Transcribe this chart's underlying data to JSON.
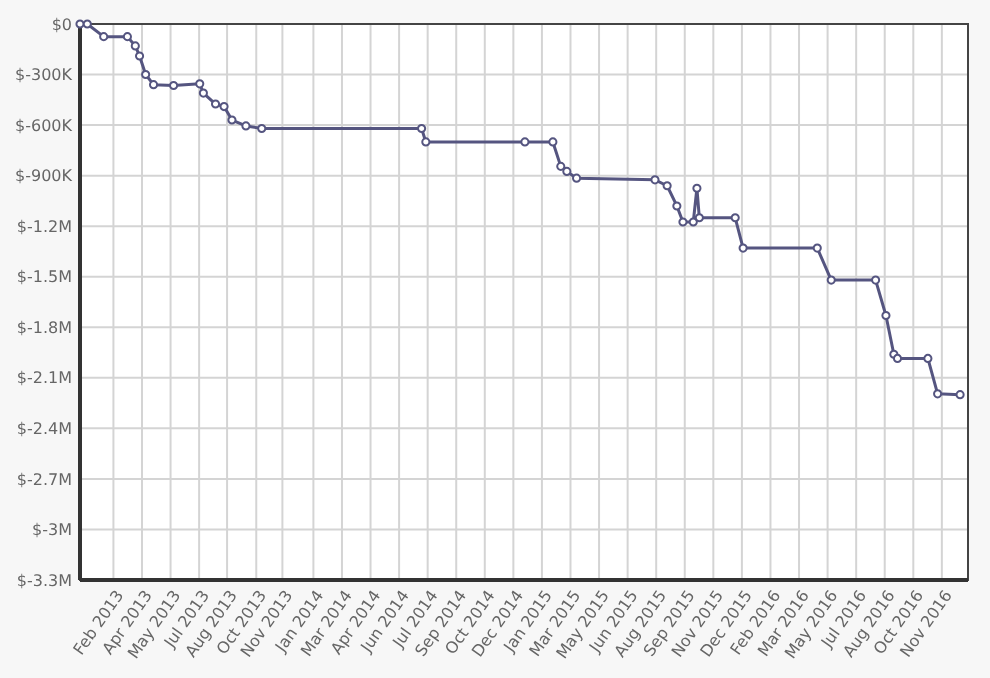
{
  "chart_data": {
    "type": "line",
    "x": [
      "2013-01-01",
      "2013-01-13",
      "2013-02-09",
      "2013-03-20",
      "2013-04-02",
      "2013-04-09",
      "2013-04-19",
      "2013-05-02",
      "2013-06-04",
      "2013-07-17",
      "2013-07-23",
      "2013-08-12",
      "2013-08-26",
      "2013-09-08",
      "2013-10-01",
      "2013-10-27",
      "2014-07-17",
      "2014-07-24",
      "2015-01-03",
      "2015-02-18",
      "2015-03-03",
      "2015-03-13",
      "2015-03-29",
      "2015-08-05",
      "2015-08-25",
      "2015-09-10",
      "2015-09-20",
      "2015-10-07",
      "2015-10-13",
      "2015-10-17",
      "2015-12-15",
      "2015-12-28",
      "2016-04-28",
      "2016-05-21",
      "2016-08-02",
      "2016-08-19",
      "2016-09-01",
      "2016-09-07",
      "2016-10-27",
      "2016-11-12",
      "2016-12-19"
    ],
    "series": [
      {
        "color": "#555580",
        "values": [
          0,
          0,
          -75000,
          -75000,
          -130000,
          -190000,
          -300000,
          -360000,
          -365000,
          -355000,
          -410000,
          -475000,
          -490000,
          -570000,
          -605000,
          -620000,
          -620000,
          -700000,
          -700000,
          -700000,
          -845000,
          -875000,
          -915000,
          -925000,
          -960000,
          -1080000,
          -1175000,
          -1175000,
          -975000,
          -1150000,
          -1150000,
          -1330000,
          -1330000,
          -1520000,
          -1520000,
          -1730000,
          -1960000,
          -1985000,
          -1985000,
          -2195000,
          -2200000
        ]
      }
    ],
    "xlim": [
      "2013-01-01",
      "2017-01-01"
    ],
    "xticks": [
      {
        "value": "2013-02-25",
        "label": "Feb 2013"
      },
      {
        "value": "2013-04-13",
        "label": "Apr 2013"
      },
      {
        "value": "2013-05-30",
        "label": "May 2013"
      },
      {
        "value": "2013-07-16",
        "label": "Jul 2013"
      },
      {
        "value": "2013-08-31",
        "label": "Aug 2013"
      },
      {
        "value": "2013-10-18",
        "label": "Oct 2013"
      },
      {
        "value": "2013-11-30",
        "label": "Nov 2013"
      },
      {
        "value": "2014-01-20",
        "label": "Jan 2014"
      },
      {
        "value": "2014-03-08",
        "label": "Mar 2014"
      },
      {
        "value": "2014-04-24",
        "label": "Apr 2014"
      },
      {
        "value": "2014-06-10",
        "label": "Jun 2014"
      },
      {
        "value": "2014-07-27",
        "label": "Jul 2014"
      },
      {
        "value": "2014-09-12",
        "label": "Sep 2014"
      },
      {
        "value": "2014-10-29",
        "label": "Oct 2014"
      },
      {
        "value": "2014-12-15",
        "label": "Dec 2014"
      },
      {
        "value": "2015-01-31",
        "label": "Jan 2015"
      },
      {
        "value": "2015-03-19",
        "label": "Mar 2015"
      },
      {
        "value": "2015-05-05",
        "label": "May 2015"
      },
      {
        "value": "2015-06-21",
        "label": "Jun 2015"
      },
      {
        "value": "2015-08-07",
        "label": "Aug 2015"
      },
      {
        "value": "2015-09-23",
        "label": "Sep 2015"
      },
      {
        "value": "2015-11-09",
        "label": "Nov 2015"
      },
      {
        "value": "2015-12-26",
        "label": "Dec 2015"
      },
      {
        "value": "2016-02-11",
        "label": "Feb 2016"
      },
      {
        "value": "2016-03-29",
        "label": "Mar 2016"
      },
      {
        "value": "2016-05-15",
        "label": "May 2016"
      },
      {
        "value": "2016-07-01",
        "label": "Jul 2016"
      },
      {
        "value": "2016-08-17",
        "label": "Aug 2016"
      },
      {
        "value": "2016-10-03",
        "label": "Oct 2016"
      },
      {
        "value": "2016-11-19",
        "label": "Nov 2016"
      }
    ],
    "ylim": [
      -3300000,
      0
    ],
    "yticks": [
      {
        "value": 0,
        "label": "$0"
      },
      {
        "value": -300000,
        "label": "$-300K"
      },
      {
        "value": -600000,
        "label": "$-600K"
      },
      {
        "value": -900000,
        "label": "$-900K"
      },
      {
        "value": -1200000,
        "label": "$-1.2M"
      },
      {
        "value": -1500000,
        "label": "$-1.5M"
      },
      {
        "value": -1800000,
        "label": "$-1.8M"
      },
      {
        "value": -2100000,
        "label": "$-2.1M"
      },
      {
        "value": -2400000,
        "label": "$-2.4M"
      },
      {
        "value": -2700000,
        "label": "$-2.7M"
      },
      {
        "value": -3000000,
        "label": "$-3M"
      },
      {
        "value": -3300000,
        "label": "$-3.3M"
      }
    ],
    "grid": true,
    "marker": "circle",
    "line_style": "solid"
  }
}
